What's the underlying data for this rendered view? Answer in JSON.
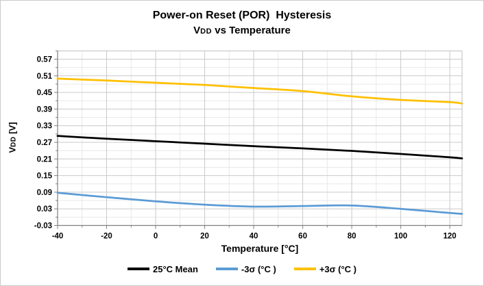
{
  "frame": {
    "background": "#ffffff",
    "border_color": "#c9c9c9"
  },
  "chart_data": {
    "type": "line",
    "title": "Power-on Reset (POR)  Hysteresis",
    "subtitle_parts": {
      "prefix": "V",
      "subscript": "DD",
      "suffix": " vs Temperature"
    },
    "xlabel": "Temperature [°C]",
    "ylabel_parts": {
      "prefix": "V",
      "subscript": "DD",
      "suffix": " [V]"
    },
    "xlim": [
      -40,
      125
    ],
    "ylim": [
      -0.03,
      0.6
    ],
    "x_major_ticks": [
      -40,
      -20,
      0,
      20,
      40,
      60,
      80,
      100,
      120
    ],
    "x_minor_step": 10,
    "y_major_ticks": [
      0.57,
      0.51,
      0.45,
      0.39,
      0.33,
      0.27,
      0.21,
      0.15,
      0.09,
      0.03,
      -0.03
    ],
    "y_minor_step": 0.03,
    "grid": true,
    "legend_position": "bottom",
    "x": [
      -40,
      -20,
      0,
      20,
      40,
      60,
      80,
      100,
      120,
      125
    ],
    "series": [
      {
        "id": "mean-25c",
        "name": "25°C Mean",
        "color": "#000000",
        "values": [
          0.293,
          0.283,
          0.274,
          0.265,
          0.256,
          0.248,
          0.239,
          0.228,
          0.216,
          0.212
        ]
      },
      {
        "id": "minus-3sigma",
        "name": "-3σ (°C )",
        "color": "#5b9bd5",
        "values": [
          0.088,
          0.072,
          0.057,
          0.045,
          0.038,
          0.04,
          0.042,
          0.03,
          0.015,
          0.012
        ]
      },
      {
        "id": "plus-3sigma",
        "name": "+3σ (°C )",
        "color": "#ffc000",
        "values": [
          0.5,
          0.493,
          0.485,
          0.477,
          0.466,
          0.455,
          0.436,
          0.423,
          0.415,
          0.41
        ]
      }
    ],
    "styles": {
      "minor_grid_color": "#e8e8e8",
      "major_grid_color": "#c9c9c9",
      "axis_color": "#7f7f7f",
      "plot_border_color": "#bfbfbf",
      "text_color": "#000000"
    }
  }
}
